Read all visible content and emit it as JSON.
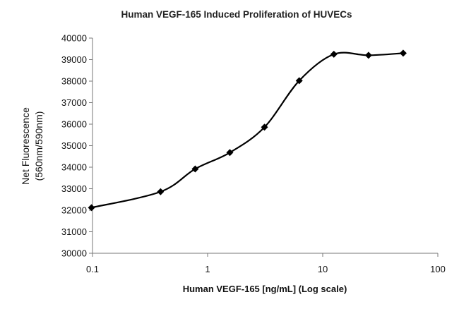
{
  "chart_data": {
    "type": "scatter",
    "title": "Human VEGF-165 Induced Proliferation of HUVECs",
    "xlabel": "Human VEGF-165 [ng/mL] (Log scale)",
    "ylabel_lines": [
      "Net Fluorescence",
      "(560nm/590nm)"
    ],
    "x_scale": "log",
    "xlim": [
      0.1,
      100
    ],
    "ylim": [
      30000,
      40000
    ],
    "x_ticks": [
      0.1,
      1,
      10,
      100
    ],
    "x_tick_labels": [
      "0.1",
      "1",
      "10",
      "100"
    ],
    "y_ticks": [
      30000,
      31000,
      32000,
      33000,
      34000,
      35000,
      36000,
      37000,
      38000,
      39000,
      40000
    ],
    "y_tick_labels": [
      "30000",
      "31000",
      "32000",
      "33000",
      "34000",
      "35000",
      "36000",
      "37000",
      "38000",
      "39000",
      "40000"
    ],
    "grid": false,
    "line": "smoothed",
    "marker": "diamond",
    "series": [
      {
        "color": "#000000",
        "x": [
          0.098,
          0.39,
          0.78,
          1.56,
          3.12,
          6.25,
          12.5,
          25,
          50
        ],
        "y": [
          32120,
          32860,
          33920,
          34680,
          35860,
          38020,
          39250,
          39200,
          39300
        ]
      }
    ]
  }
}
